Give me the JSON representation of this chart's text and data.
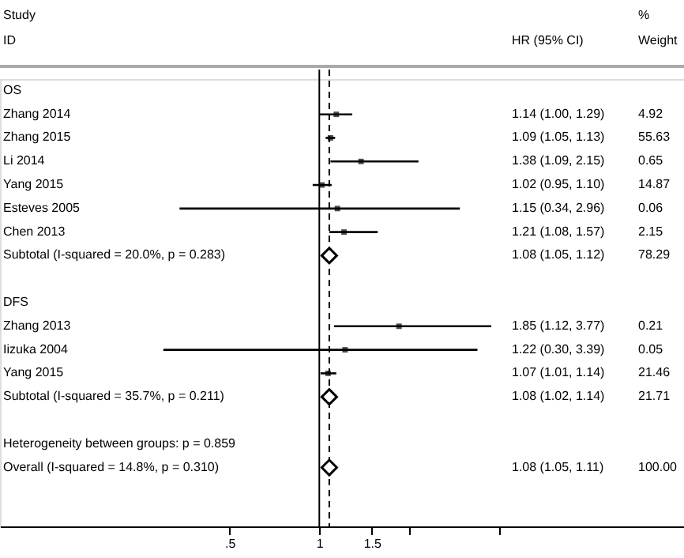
{
  "chart_data": [
    {
      "type": "scatter",
      "orientation": "horizontal",
      "categories": [
        "OS",
        "Zhang 2014",
        "Zhang 2015",
        "Li 2014",
        "Yang 2015",
        "Esteves 2005",
        "Chen 2013",
        "Subtotal  (I-squared = 20.0%, p = 0.283)",
        null,
        "DFS",
        "Zhang 2013",
        "Iizuka 2004",
        "Yang 2015",
        "Subtotal  (I-squared = 35.7%, p = 0.211)",
        null,
        "Heterogeneity between groups: p = 0.859",
        "Overall  (I-squared = 14.8%, p = 0.310)",
        null,
        null
      ],
      "series": [
        {
          "color": "#000000",
          "marker": "square",
          "values": [
            null,
            1.14,
            1.09,
            1.38,
            1.02,
            1.15,
            1.21,
            null,
            null,
            null,
            1.85,
            1.22,
            1.07,
            null,
            null,
            null,
            null,
            null,
            null
          ],
          "errors": [
            null,
            [
              1.0,
              1.29
            ],
            [
              1.05,
              1.13
            ],
            [
              1.09,
              2.15
            ],
            [
              0.95,
              1.1
            ],
            [
              0.34,
              2.96
            ],
            [
              1.08,
              1.57
            ],
            null,
            null,
            null,
            [
              1.12,
              3.77
            ],
            [
              0.3,
              3.39
            ],
            [
              1.01,
              1.14
            ],
            null,
            null,
            null,
            null,
            null,
            null
          ]
        },
        {
          "color": "#000000",
          "marker": "diamond",
          "values": [
            null,
            null,
            null,
            null,
            null,
            null,
            null,
            1.08,
            null,
            null,
            null,
            null,
            null,
            1.08,
            null,
            null,
            1.08,
            null,
            null
          ],
          "errors": [
            null,
            null,
            null,
            null,
            null,
            null,
            null,
            [
              1.05,
              1.12
            ],
            null,
            null,
            null,
            null,
            null,
            [
              1.02,
              1.14
            ],
            null,
            null,
            [
              1.05,
              1.11
            ],
            null,
            null
          ]
        }
      ],
      "annotations": [
        "Study",
        "ID"
      ],
      "ref_lines": [
        {
          "axis": "x",
          "value": 1,
          "color": "#000000",
          "line_style": "solid"
        },
        {
          "axis": "x",
          "value": 1.08,
          "color": "#000000",
          "line_style": "dashed"
        }
      ],
      "log": "x",
      "xlim": [
        0.085,
        16.7
      ],
      "xticks": [
        {
          "value": 0.5,
          "label": ".5"
        },
        1,
        1.5,
        {
          "value": 2,
          "label": null
        },
        {
          "value": 4,
          "label": null
        }
      ],
      "grid": false
    },
    {
      "type": "other",
      "annotations": [
        "%",
        "HR (95% CI)",
        "Weight",
        "1.14 (1.00, 1.29)",
        "4.92",
        "1.09 (1.05, 1.13)",
        "55.63",
        "1.38 (1.09, 2.15)",
        "0.65",
        "1.02 (0.95, 1.10)",
        "14.87",
        "1.15 (0.34, 2.96)",
        "0.06",
        "1.21 (1.08, 1.57)",
        "2.15",
        "1.08 (1.05, 1.12)",
        "78.29",
        "1.85 (1.12, 3.77)",
        "0.21",
        "1.22 (0.30, 3.39)",
        "0.05",
        "1.07 (1.01, 1.14)",
        "21.46",
        "1.08 (1.02, 1.14)",
        "21.71",
        "1.08 (1.05, 1.11)",
        "100.00"
      ]
    }
  ]
}
